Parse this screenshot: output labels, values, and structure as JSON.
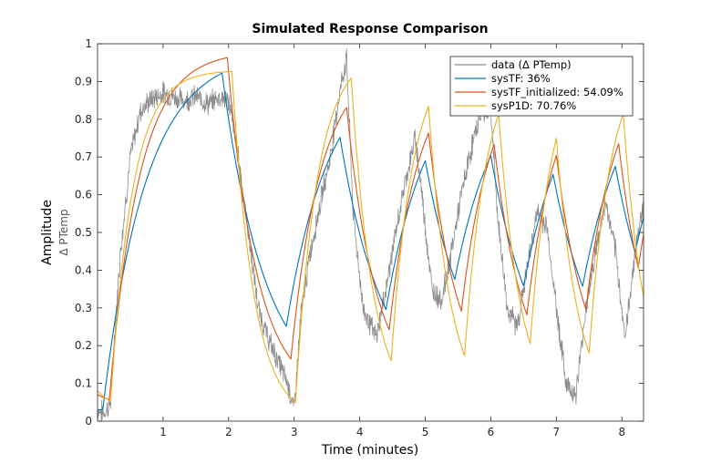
{
  "chart_data": {
    "type": "line",
    "title": "Simulated Response Comparison",
    "xlabel": "Time (minutes)",
    "ylabel": "Amplitude",
    "ysublabel": "Δ PTemp",
    "xlim": [
      0,
      8.33
    ],
    "ylim": [
      0,
      1
    ],
    "xticks": [
      1,
      2,
      3,
      4,
      5,
      6,
      7,
      8
    ],
    "yticks": [
      0,
      0.1,
      0.2,
      0.3,
      0.4,
      0.5,
      0.6,
      0.7,
      0.8,
      0.9,
      1
    ],
    "ytick_labels": [
      "0",
      "0.1",
      "0.2",
      "0.3",
      "0.4",
      "0.5",
      "0.6",
      "0.7",
      "0.8",
      "0.9",
      "1"
    ],
    "grid": false,
    "legend_position": "top-right",
    "series": [
      {
        "name": "data (Δ PTemp)",
        "color": "#8c8c8c",
        "kind": "measured",
        "x": [
          0,
          0.1,
          0.2,
          0.25,
          0.35,
          0.5,
          0.65,
          0.8,
          1.0,
          1.15,
          1.3,
          1.5,
          1.7,
          1.85,
          2.0,
          2.15,
          2.3,
          2.45,
          2.6,
          2.75,
          2.9,
          3.0,
          3.1,
          3.25,
          3.4,
          3.55,
          3.7,
          3.8,
          3.9,
          4.05,
          4.25,
          4.4,
          4.55,
          4.7,
          4.85,
          4.95,
          5.1,
          5.25,
          5.4,
          5.55,
          5.7,
          5.85,
          6.0,
          6.1,
          6.25,
          6.4,
          6.55,
          6.7,
          6.85,
          7.0,
          7.15,
          7.3,
          7.45,
          7.6,
          7.75,
          7.9,
          8.05,
          8.2,
          8.33
        ],
        "y": [
          0.03,
          0.02,
          0.05,
          0.2,
          0.45,
          0.7,
          0.82,
          0.85,
          0.87,
          0.86,
          0.85,
          0.86,
          0.84,
          0.86,
          0.85,
          0.7,
          0.5,
          0.3,
          0.22,
          0.16,
          0.1,
          0.03,
          0.28,
          0.45,
          0.58,
          0.7,
          0.88,
          0.96,
          0.55,
          0.3,
          0.22,
          0.35,
          0.5,
          0.64,
          0.75,
          0.6,
          0.35,
          0.32,
          0.45,
          0.6,
          0.72,
          0.82,
          0.82,
          0.55,
          0.3,
          0.25,
          0.4,
          0.55,
          0.52,
          0.3,
          0.1,
          0.07,
          0.3,
          0.45,
          0.58,
          0.45,
          0.22,
          0.45,
          0.58
        ]
      },
      {
        "name": "sysTF:  36%",
        "color": "#0072bd",
        "kind": "first_order",
        "tau": 0.65,
        "start": 0.03,
        "segments": [
          [
            0.0,
            0.08,
            0.03
          ],
          [
            0.08,
            1.9,
            0.98
          ],
          [
            1.9,
            2.88,
            0.06
          ],
          [
            2.88,
            3.7,
            0.95
          ],
          [
            3.7,
            4.4,
            0.06
          ],
          [
            4.4,
            5.0,
            0.95
          ],
          [
            5.0,
            5.45,
            0.06
          ],
          [
            5.45,
            6.0,
            0.95
          ],
          [
            6.0,
            6.5,
            0.06
          ],
          [
            6.5,
            6.95,
            0.95
          ],
          [
            6.95,
            7.4,
            0.06
          ],
          [
            7.4,
            7.9,
            0.95
          ],
          [
            7.9,
            8.2,
            0.06
          ],
          [
            8.2,
            8.33,
            0.95
          ]
        ]
      },
      {
        "name": "sysTF_initialized: 54.09%",
        "color": "#d95319",
        "kind": "first_order",
        "tau": 0.45,
        "start": 0.07,
        "segments": [
          [
            0.0,
            0.18,
            0.03
          ],
          [
            0.18,
            1.98,
            0.98
          ],
          [
            1.98,
            2.95,
            0.06
          ],
          [
            2.95,
            3.8,
            0.95
          ],
          [
            3.8,
            4.45,
            0.06
          ],
          [
            4.45,
            5.05,
            0.95
          ],
          [
            5.05,
            5.55,
            0.06
          ],
          [
            5.55,
            6.05,
            0.95
          ],
          [
            6.05,
            6.55,
            0.06
          ],
          [
            6.55,
            7.0,
            0.95
          ],
          [
            7.0,
            7.45,
            0.06
          ],
          [
            7.45,
            7.95,
            0.95
          ],
          [
            7.95,
            8.25,
            0.06
          ],
          [
            8.25,
            8.33,
            0.95
          ]
        ]
      },
      {
        "name": "sysP1D: 70.76%",
        "color": "#edb120",
        "kind": "first_order",
        "tau": 0.33,
        "start": 0.08,
        "segments": [
          [
            0.0,
            0.2,
            0.02
          ],
          [
            0.2,
            2.05,
            0.93
          ],
          [
            2.05,
            3.02,
            0.0
          ],
          [
            3.02,
            3.87,
            0.98
          ],
          [
            3.87,
            4.48,
            0.02
          ],
          [
            4.48,
            5.05,
            0.98
          ],
          [
            5.05,
            5.6,
            0.02
          ],
          [
            5.6,
            6.12,
            0.98
          ],
          [
            6.12,
            6.6,
            0.02
          ],
          [
            6.6,
            7.0,
            0.98
          ],
          [
            7.0,
            7.5,
            0.02
          ],
          [
            7.5,
            8.02,
            0.98
          ],
          [
            8.02,
            8.33,
            0.02
          ]
        ]
      }
    ]
  }
}
